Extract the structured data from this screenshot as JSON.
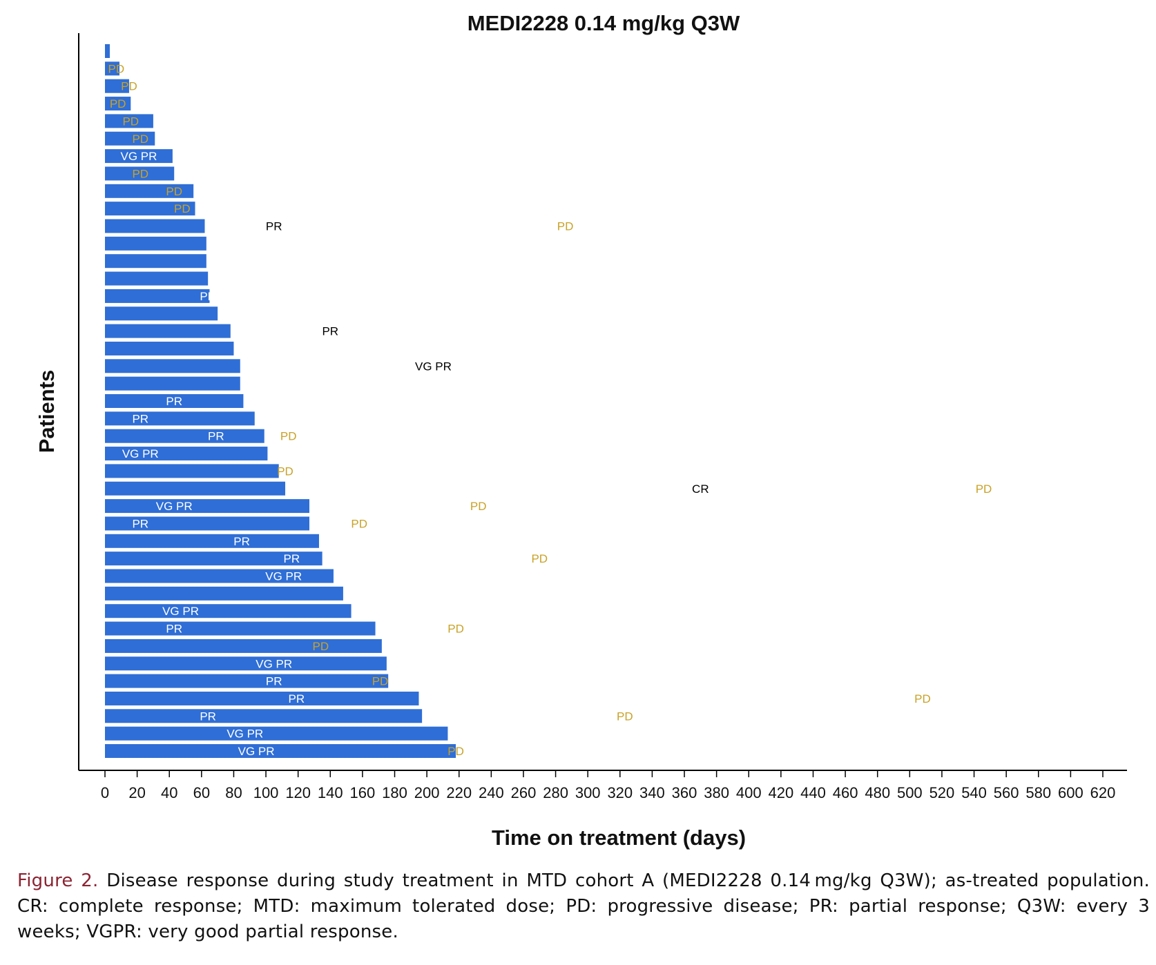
{
  "chart_data": {
    "type": "bar",
    "orientation": "horizontal",
    "title": "MEDI2228 0.14 mg/kg Q3W",
    "xlabel": "Time on treatment (days)",
    "ylabel": "Patients",
    "xlim": [
      0,
      620
    ],
    "x_ticks": [
      0,
      20,
      40,
      60,
      80,
      100,
      120,
      140,
      160,
      180,
      200,
      220,
      240,
      260,
      280,
      300,
      320,
      340,
      360,
      380,
      400,
      420,
      440,
      460,
      480,
      500,
      520,
      540,
      560,
      580,
      600,
      620
    ],
    "grid": false,
    "bar_color": "#2f6ed6",
    "label_colors": {
      "PD": "#c9a227",
      "PR": "#000000",
      "VGPR": "#000000",
      "CR": "#000000",
      "inside_bar": "#ffffff"
    },
    "patients": [
      {
        "days": 3,
        "responses": []
      },
      {
        "days": 9,
        "responses": [
          {
            "label": "PD",
            "day": 7
          }
        ]
      },
      {
        "days": 15,
        "responses": [
          {
            "label": "PD",
            "day": 15
          }
        ]
      },
      {
        "days": 16,
        "responses": [
          {
            "label": "PD",
            "day": 8
          }
        ]
      },
      {
        "days": 30,
        "responses": [
          {
            "label": "PD",
            "day": 16
          }
        ]
      },
      {
        "days": 31,
        "responses": [
          {
            "label": "PD",
            "day": 22
          }
        ]
      },
      {
        "days": 42,
        "responses": [
          {
            "label": "VG PR",
            "day": 21
          }
        ]
      },
      {
        "days": 43,
        "responses": [
          {
            "label": "PD",
            "day": 22
          }
        ]
      },
      {
        "days": 55,
        "responses": [
          {
            "label": "PD",
            "day": 43
          }
        ]
      },
      {
        "days": 56,
        "responses": [
          {
            "label": "PD",
            "day": 48
          }
        ]
      },
      {
        "days": 62,
        "responses": [
          {
            "label": "PR",
            "day": 105
          },
          {
            "label": "PD",
            "day": 286
          }
        ]
      },
      {
        "days": 63,
        "responses": []
      },
      {
        "days": 63,
        "responses": []
      },
      {
        "days": 64,
        "responses": []
      },
      {
        "days": 65,
        "responses": [
          {
            "label": "PR",
            "day": 64
          }
        ]
      },
      {
        "days": 70,
        "responses": []
      },
      {
        "days": 78,
        "responses": [
          {
            "label": "PR",
            "day": 140
          }
        ]
      },
      {
        "days": 80,
        "responses": []
      },
      {
        "days": 84,
        "responses": [
          {
            "label": "VG PR",
            "day": 204
          }
        ]
      },
      {
        "days": 84,
        "responses": []
      },
      {
        "days": 86,
        "responses": [
          {
            "label": "PR",
            "day": 43
          }
        ]
      },
      {
        "days": 93,
        "responses": [
          {
            "label": "PR",
            "day": 22
          }
        ]
      },
      {
        "days": 99,
        "responses": [
          {
            "label": "PR",
            "day": 69
          },
          {
            "label": "PD",
            "day": 114
          }
        ]
      },
      {
        "days": 101,
        "responses": [
          {
            "label": "VG PR",
            "day": 22
          }
        ]
      },
      {
        "days": 108,
        "responses": [
          {
            "label": "PD",
            "day": 112
          }
        ]
      },
      {
        "days": 112,
        "responses": [
          {
            "label": "CR",
            "day": 370
          },
          {
            "label": "PD",
            "day": 546
          }
        ]
      },
      {
        "days": 127,
        "responses": [
          {
            "label": "VG PR",
            "day": 43
          },
          {
            "label": "PD",
            "day": 232
          }
        ]
      },
      {
        "days": 127,
        "responses": [
          {
            "label": "PR",
            "day": 22
          },
          {
            "label": "PD",
            "day": 158
          }
        ]
      },
      {
        "days": 133,
        "responses": [
          {
            "label": "PR",
            "day": 85
          }
        ]
      },
      {
        "days": 135,
        "responses": [
          {
            "label": "PR",
            "day": 116
          },
          {
            "label": "PD",
            "day": 270
          }
        ]
      },
      {
        "days": 142,
        "responses": [
          {
            "label": "VG PR",
            "day": 111
          }
        ]
      },
      {
        "days": 148,
        "responses": []
      },
      {
        "days": 153,
        "responses": [
          {
            "label": "VG PR",
            "day": 47
          }
        ]
      },
      {
        "days": 168,
        "responses": [
          {
            "label": "PR",
            "day": 43
          },
          {
            "label": "PD",
            "day": 218
          }
        ]
      },
      {
        "days": 172,
        "responses": [
          {
            "label": "PD",
            "day": 134
          }
        ]
      },
      {
        "days": 175,
        "responses": [
          {
            "label": "VG PR",
            "day": 105
          }
        ]
      },
      {
        "days": 176,
        "responses": [
          {
            "label": "PR",
            "day": 105
          },
          {
            "label": "PD",
            "day": 171
          }
        ]
      },
      {
        "days": 195,
        "responses": [
          {
            "label": "PR",
            "day": 119
          },
          {
            "label": "PD",
            "day": 508
          }
        ]
      },
      {
        "days": 197,
        "responses": [
          {
            "label": "PR",
            "day": 64
          },
          {
            "label": "PD",
            "day": 323
          }
        ]
      },
      {
        "days": 213,
        "responses": [
          {
            "label": "VG PR",
            "day": 87
          }
        ]
      },
      {
        "days": 218,
        "responses": [
          {
            "label": "VG PR",
            "day": 94
          },
          {
            "label": "PD",
            "day": 218
          }
        ]
      }
    ]
  },
  "caption": {
    "figure_label": "Figure 2.",
    "text": "Disease response during study treatment in MTD cohort A (MEDI2228 0.14 mg/kg Q3W); as-treated population. CR: complete response; MTD: maximum tolerated dose; PD: progressive disease; PR: partial response; Q3W: every 3 weeks; VGPR: very good partial response."
  }
}
